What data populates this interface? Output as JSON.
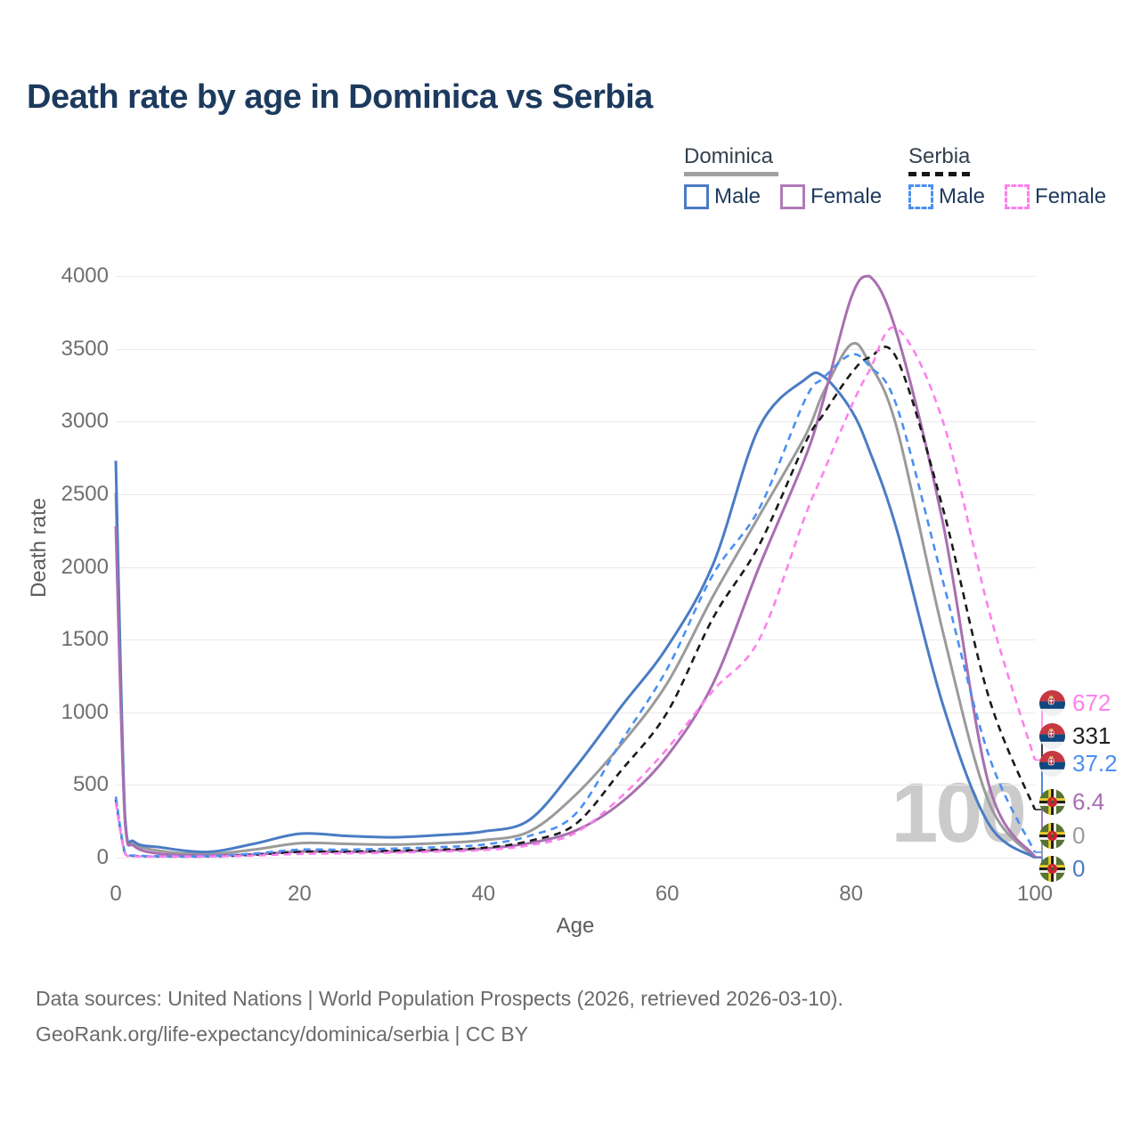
{
  "title": "Death rate by age in Dominica vs Serbia",
  "watermark": "100",
  "legend": {
    "groups": [
      {
        "label": "Dominica",
        "style": "solid",
        "underline_color": "#a0a0a0",
        "items": [
          {
            "label": "Male",
            "color": "#4a7cc4",
            "dash": false
          },
          {
            "label": "Female",
            "color": "#b07ab8",
            "dash": false
          }
        ]
      },
      {
        "label": "Serbia",
        "style": "dashed",
        "underline_color": "#161616",
        "items": [
          {
            "label": "Male",
            "color": "#4a90f2",
            "dash": true
          },
          {
            "label": "Female",
            "color": "#fd80ee",
            "dash": true
          }
        ]
      }
    ]
  },
  "axes": {
    "x_label": "Age",
    "y_label": "Death rate"
  },
  "chart_data": {
    "type": "line",
    "title": "Death rate by age in Dominica vs Serbia",
    "xlabel": "Age",
    "ylabel": "Death rate",
    "xlim": [
      0,
      100
    ],
    "ylim": [
      0,
      4000
    ],
    "x_ticks": [
      0,
      20,
      40,
      60,
      80,
      100
    ],
    "y_ticks": [
      0,
      500,
      1000,
      1500,
      2000,
      2500,
      3000,
      3500,
      4000
    ],
    "grid": "horizontal",
    "legend_position": "top-right",
    "x": [
      0,
      1,
      2,
      5,
      10,
      15,
      20,
      25,
      30,
      35,
      40,
      45,
      50,
      55,
      60,
      65,
      70,
      75,
      77,
      80,
      82,
      85,
      90,
      95,
      100
    ],
    "series": [
      {
        "id": "dominica_all",
        "name": "Dominica",
        "country": "Dominica",
        "sex": "all",
        "color": "#9b9b9b",
        "dash": false,
        "values": [
          2510,
          270,
          100,
          45,
          25,
          55,
          100,
          95,
          90,
          100,
          120,
          180,
          430,
          780,
          1200,
          1800,
          2350,
          2900,
          3200,
          3530,
          3400,
          2950,
          1550,
          380,
          0
        ]
      },
      {
        "id": "dominica_male",
        "name": "Dominica Male",
        "country": "Dominica",
        "sex": "male",
        "color": "#4a7cc4",
        "dash": false,
        "values": [
          2730,
          290,
          110,
          70,
          40,
          95,
          165,
          150,
          140,
          155,
          180,
          260,
          620,
          1040,
          1450,
          2020,
          2960,
          3290,
          3310,
          3080,
          2800,
          2250,
          1050,
          230,
          0
        ]
      },
      {
        "id": "dominica_female",
        "name": "Dominica Female",
        "country": "Dominica",
        "sex": "female",
        "color": "#a86fb0",
        "dash": false,
        "values": [
          2280,
          250,
          80,
          25,
          15,
          22,
          42,
          40,
          42,
          50,
          62,
          100,
          185,
          380,
          700,
          1200,
          2000,
          2750,
          3150,
          3850,
          4000,
          3600,
          2300,
          500,
          6.4
        ]
      },
      {
        "id": "serbia_all",
        "name": "Serbia",
        "country": "Serbia",
        "sex": "all",
        "color": "#1a1a1a",
        "dash": true,
        "values": [
          400,
          30,
          12,
          8,
          8,
          20,
          40,
          42,
          48,
          55,
          68,
          115,
          230,
          600,
          1000,
          1650,
          2150,
          2850,
          3050,
          3330,
          3440,
          3430,
          2400,
          1100,
          331
        ]
      },
      {
        "id": "serbia_male",
        "name": "Serbia Male",
        "country": "Serbia",
        "sex": "male",
        "color": "#4a90f2",
        "dash": true,
        "values": [
          420,
          35,
          15,
          10,
          10,
          28,
          55,
          55,
          62,
          72,
          90,
          150,
          300,
          800,
          1300,
          1950,
          2400,
          3150,
          3300,
          3460,
          3380,
          3100,
          1900,
          700,
          37.2
        ]
      },
      {
        "id": "serbia_female",
        "name": "Serbia Female",
        "country": "Serbia",
        "sex": "female",
        "color": "#fd80ee",
        "dash": true,
        "values": [
          380,
          28,
          10,
          8,
          8,
          14,
          26,
          30,
          34,
          42,
          52,
          85,
          170,
          420,
          750,
          1150,
          1500,
          2350,
          2650,
          3100,
          3350,
          3640,
          3000,
          1700,
          672
        ]
      }
    ],
    "end_labels": [
      {
        "series": "serbia_female",
        "text": "672",
        "flag": "serbia",
        "color": "#fd80ee"
      },
      {
        "series": "serbia_all",
        "text": "331",
        "flag": "serbia",
        "color": "#1f1f1f"
      },
      {
        "series": "serbia_male",
        "text": "37.2",
        "flag": "serbia",
        "color": "#4a90f2"
      },
      {
        "series": "dominica_female",
        "text": "6.4",
        "flag": "dominica",
        "color": "#a86fb0"
      },
      {
        "series": "dominica_all",
        "text": "0",
        "flag": "dominica",
        "color": "#9b9b9b"
      },
      {
        "series": "dominica_male",
        "text": "0",
        "flag": "dominica",
        "color": "#4a7cc4"
      }
    ]
  },
  "footer": {
    "line1": "Data sources: United Nations | World Population Prospects (2026, retrieved 2026-03-10).",
    "line2": "GeoRank.org/life-expectancy/dominica/serbia | CC BY"
  }
}
